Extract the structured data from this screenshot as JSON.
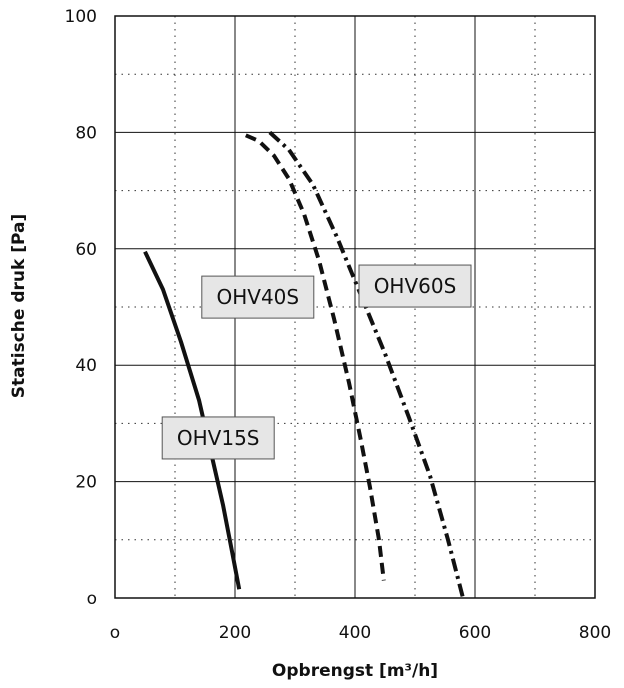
{
  "chart_data": {
    "type": "line",
    "title": "",
    "xlabel": "Opbrengst  [m³/h]",
    "ylabel": "Statische druk  [Pa]",
    "xlim": [
      0,
      800
    ],
    "ylim": [
      0,
      100
    ],
    "x_ticks": [
      0,
      200,
      400,
      600,
      800
    ],
    "x_tick_labels": [
      "o",
      "200",
      "400",
      "600",
      "800"
    ],
    "y_ticks": [
      0,
      20,
      40,
      60,
      80,
      100
    ],
    "y_tick_labels": [
      "o",
      "20",
      "40",
      "60",
      "80",
      "100"
    ],
    "grid": {
      "major": true,
      "minor": "dotted",
      "minor_x_step": 100,
      "minor_y_step": 10
    },
    "line_color": "#111111",
    "label_box_color": "#e6e6e6",
    "series": [
      {
        "name": "OHV15S",
        "line_style": "solid",
        "x": [
          50,
          80,
          110,
          140,
          160,
          180,
          195,
          207
        ],
        "y": [
          59.5,
          53,
          44,
          34,
          25,
          16,
          8,
          1.5
        ]
      },
      {
        "name": "OHV40S",
        "line_style": "dashed",
        "x": [
          218,
          240,
          265,
          290,
          315,
          340,
          365,
          390,
          410,
          425,
          440,
          448
        ],
        "y": [
          79.5,
          78.5,
          76,
          72,
          66,
          58,
          48,
          37,
          27,
          19,
          10,
          3
        ]
      },
      {
        "name": "OHV60S",
        "line_style": "dash-dot",
        "x": [
          258,
          290,
          330,
          370,
          410,
          450,
          490,
          525,
          555,
          580
        ],
        "y": [
          80,
          77,
          71,
          62,
          52,
          42,
          31,
          21,
          10,
          0
        ]
      }
    ],
    "annotations": [
      {
        "text": "OHV15S",
        "series": "OHV15S"
      },
      {
        "text": "OHV40S",
        "series": "OHV40S"
      },
      {
        "text": "OHV60S",
        "series": "OHV60S"
      }
    ]
  }
}
